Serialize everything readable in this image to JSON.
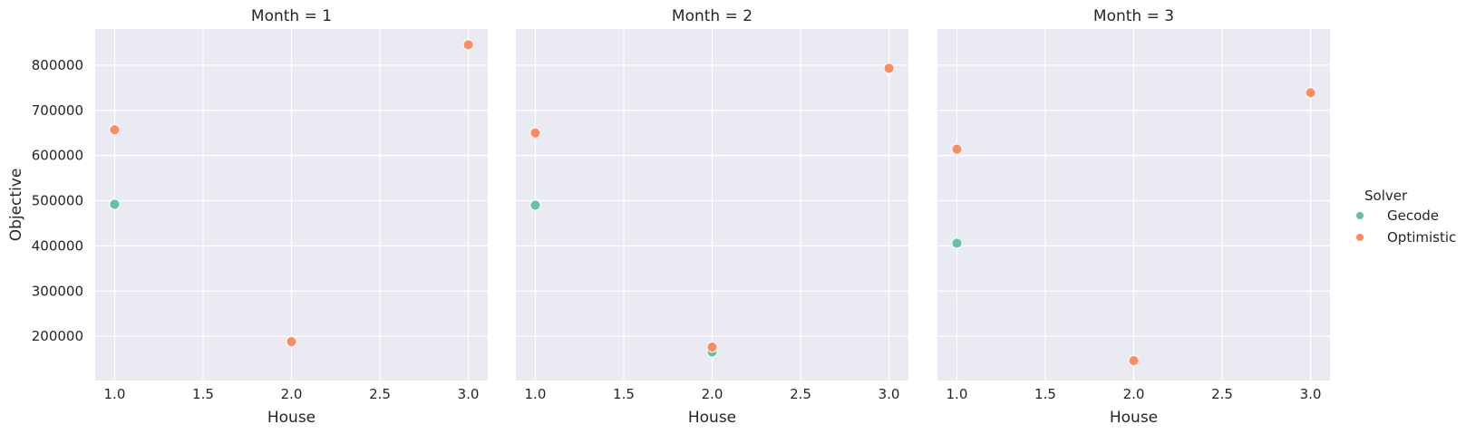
{
  "chart_data": {
    "type": "scatter",
    "facet_title_prefix": "Month = ",
    "xlabel": "House",
    "ylabel": "Objective",
    "xlim": [
      0.89,
      3.11
    ],
    "ylim": [
      102000,
      880000
    ],
    "x_ticks": [
      1.0,
      1.5,
      2.0,
      2.5,
      3.0
    ],
    "x_tick_labels": [
      "1.0",
      "1.5",
      "2.0",
      "2.5",
      "3.0"
    ],
    "y_ticks": [
      200000,
      300000,
      400000,
      500000,
      600000,
      700000,
      800000
    ],
    "y_tick_labels": [
      "200000",
      "300000",
      "400000",
      "500000",
      "600000",
      "700000",
      "800000"
    ],
    "grid": true,
    "legend": {
      "title": "Solver",
      "placement": "right",
      "entries": [
        {
          "name": "Gecode",
          "color": "#66c2a5"
        },
        {
          "name": "Optimistic",
          "color": "#fc8d62"
        }
      ]
    },
    "panels": [
      {
        "month": "1",
        "series": [
          {
            "name": "Gecode",
            "x": [
              1,
              2,
              3
            ],
            "y": [
              492000,
              186000,
              845000
            ]
          },
          {
            "name": "Optimistic",
            "x": [
              1,
              2,
              3
            ],
            "y": [
              657000,
              188000,
              845000
            ]
          }
        ]
      },
      {
        "month": "2",
        "series": [
          {
            "name": "Gecode",
            "x": [
              1,
              2,
              3
            ],
            "y": [
              490000,
              165000,
              793000
            ]
          },
          {
            "name": "Optimistic",
            "x": [
              1,
              2,
              3
            ],
            "y": [
              650000,
              176000,
              793000
            ]
          }
        ]
      },
      {
        "month": "3",
        "series": [
          {
            "name": "Gecode",
            "x": [
              1,
              2,
              3
            ],
            "y": [
              406000,
              146000,
              738000
            ]
          },
          {
            "name": "Optimistic",
            "x": [
              1,
              2,
              3
            ],
            "y": [
              614000,
              146000,
              739000
            ]
          }
        ]
      }
    ]
  }
}
